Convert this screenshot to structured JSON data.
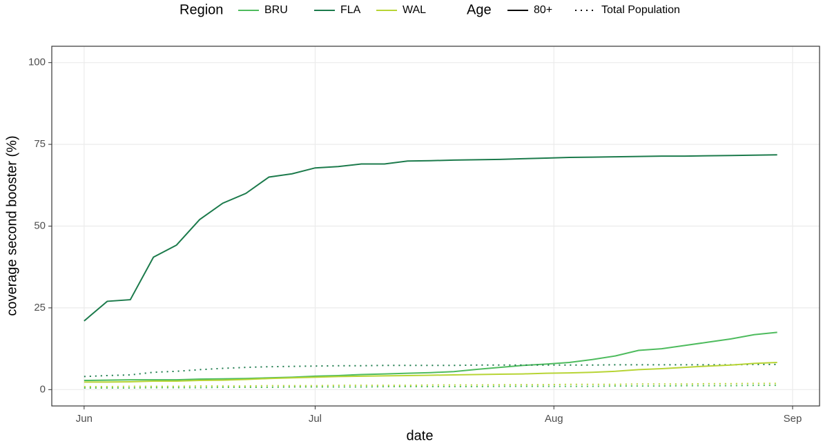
{
  "chart_data": {
    "type": "line",
    "x_label": "date",
    "y_label": "coverage second booster (%)",
    "color_legend_title": "Region",
    "linetype_legend_title": "Age",
    "ages": [
      {
        "name": "80+",
        "dash": "solid"
      },
      {
        "name": "Total Population",
        "dash": "dotted"
      }
    ],
    "x": [
      0,
      3,
      6,
      9,
      12,
      15,
      18,
      21,
      24,
      27,
      30,
      33,
      36,
      39,
      42,
      45,
      48,
      51,
      54,
      57,
      60,
      63,
      66,
      69,
      72,
      75,
      78,
      81,
      84,
      87,
      90
    ],
    "series": [
      {
        "name": "BRU",
        "color": "#4dbb5d",
        "values": [
          [
            2.8,
            2.9,
            3,
            3,
            3,
            3.2,
            3.3,
            3.4,
            3.6,
            3.8,
            4.1,
            4.3,
            4.6,
            4.8,
            5,
            5.2,
            5.5,
            6.2,
            6.8,
            7.4,
            7.8,
            8.3,
            9.2,
            10.3,
            12,
            12.5,
            13.5,
            14.5,
            15.5,
            16.8,
            17.5
          ],
          [
            0.5,
            0.5,
            0.5,
            0.6,
            0.6,
            0.6,
            0.7,
            0.7,
            0.7,
            0.8,
            0.8,
            0.8,
            0.8,
            0.9,
            0.9,
            0.9,
            0.9,
            0.9,
            1,
            1,
            1,
            1,
            1,
            1.1,
            1.1,
            1.1,
            1.2,
            1.2,
            1.2,
            1.3,
            1.3
          ]
        ]
      },
      {
        "name": "FLA",
        "color": "#1b7a4b",
        "values": [
          [
            21,
            27,
            27.5,
            40.5,
            44.2,
            52,
            57,
            60,
            65,
            66,
            67.8,
            68.2,
            69,
            69,
            69.9,
            70,
            70.2,
            70.3,
            70.4,
            70.6,
            70.8,
            71,
            71.1,
            71.2,
            71.3,
            71.4,
            71.4,
            71.5,
            71.6,
            71.7,
            71.8
          ],
          [
            4,
            4.3,
            4.5,
            5.3,
            5.6,
            6.1,
            6.5,
            6.8,
            7,
            7.1,
            7.2,
            7.3,
            7.3,
            7.4,
            7.4,
            7.4,
            7.4,
            7.5,
            7.5,
            7.5,
            7.5,
            7.5,
            7.5,
            7.6,
            7.6,
            7.6,
            7.6,
            7.6,
            7.6,
            7.7,
            7.7
          ]
        ]
      },
      {
        "name": "WAL",
        "color": "#b7d434",
        "values": [
          [
            2.3,
            2.3,
            2.4,
            2.6,
            2.6,
            2.8,
            2.9,
            3.1,
            3.4,
            3.6,
            3.8,
            4,
            4.1,
            4.2,
            4.3,
            4.4,
            4.5,
            4.6,
            4.7,
            4.8,
            5,
            5.1,
            5.3,
            5.6,
            6.1,
            6.4,
            6.8,
            7.2,
            7.5,
            8,
            8.3
          ],
          [
            0.9,
            0.9,
            1,
            1,
            1,
            1.1,
            1.1,
            1.1,
            1.2,
            1.2,
            1.2,
            1.3,
            1.3,
            1.3,
            1.3,
            1.4,
            1.4,
            1.4,
            1.5,
            1.5,
            1.5,
            1.6,
            1.6,
            1.6,
            1.7,
            1.7,
            1.7,
            1.8,
            1.8,
            1.9,
            1.9
          ]
        ]
      }
    ],
    "xlim": [
      -4.2,
      95.5
    ],
    "xticks": [
      {
        "value": 0,
        "label": "Jun"
      },
      {
        "value": 30,
        "label": "Jul"
      },
      {
        "value": 61,
        "label": "Aug"
      },
      {
        "value": 92,
        "label": "Sep"
      }
    ],
    "ylim": [
      -5,
      105
    ],
    "yticks": [
      0,
      25,
      50,
      75,
      100
    ],
    "grid": true,
    "legend_position": "top"
  }
}
